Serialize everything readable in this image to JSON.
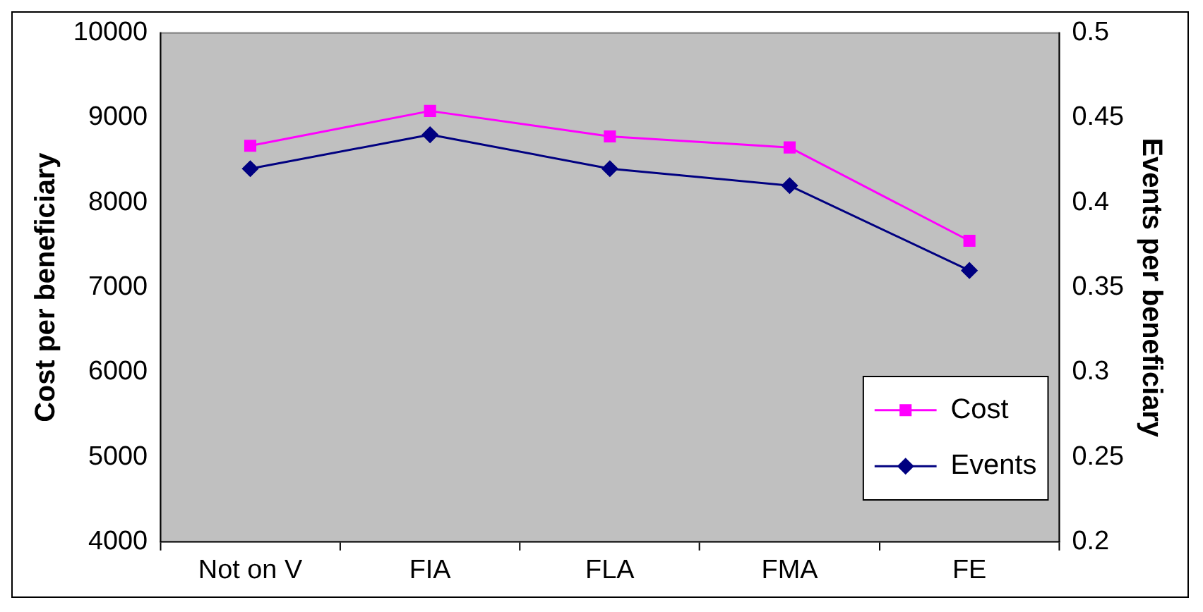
{
  "chart_data": {
    "type": "line",
    "categories": [
      "Not on V",
      "FIA",
      "FLA",
      "FMA",
      "FE"
    ],
    "ylabel": "Cost per beneficiary",
    "y2label": "Events per beneficiary",
    "series": [
      {
        "name": "Cost",
        "color": "#ff00ff",
        "marker": "square",
        "values": [
          8670,
          9080,
          8780,
          8650,
          7550
        ]
      },
      {
        "name": "Events",
        "color": "#000080",
        "marker": "diamond",
        "axis": "y2",
        "values": [
          0.42,
          0.44,
          0.42,
          0.41,
          0.36
        ]
      }
    ],
    "ylim": [
      4000,
      10000
    ],
    "yticks": [
      4000,
      5000,
      6000,
      7000,
      8000,
      9000,
      10000
    ],
    "y2lim": [
      0.2,
      0.5
    ],
    "y2ticks": [
      0.2,
      0.25,
      0.3,
      0.35,
      0.4,
      0.45,
      0.5
    ],
    "grid": false,
    "legend": "bottom right",
    "line_style": "solid"
  }
}
